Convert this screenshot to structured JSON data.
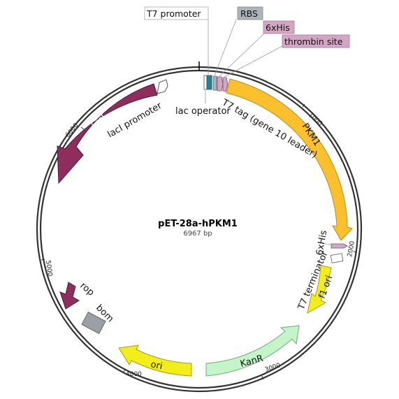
{
  "plasmid": {
    "name": "pET-28a-hPKM1",
    "length": "6967 bp"
  },
  "ticks": {
    "t1000": "1000",
    "t2000": "2000",
    "t3000": "3000",
    "t4000": "4000",
    "t5000": "5000",
    "t6000": "6000"
  },
  "features": {
    "laci": "lacI",
    "laci_promoter": "lacI promoter",
    "lac_operator": "lac operator",
    "t7_tag": "T7 tag (gene 10 leader)",
    "pkm1": "PKM1",
    "sixhis_right": "6xHis",
    "t7_terminator": "T7 terminator",
    "f1_ori": "f1 ori",
    "kanr": "KanR",
    "ori": "ori",
    "rop": "rop",
    "bom": "bom"
  },
  "callouts": {
    "t7_promoter": "T7 promoter",
    "rbs": "RBS",
    "sixhis": "6xHis",
    "thrombin_site": "thrombin site"
  },
  "colors": {
    "laci": "#8e2d5e",
    "rop": "#8e2d5e",
    "pkm1": "#fbc02d",
    "f1_ori": "#f2ee1c",
    "ori": "#f2ee1c",
    "kanr": "#c3f5c8",
    "bom": "#9aa0a6",
    "t7_promoter": "#2a7f95",
    "rbs": "#aeb2b9",
    "his": "#d4a6c6",
    "thrombin": "#d4a6c6",
    "backbone": "#333333"
  }
}
